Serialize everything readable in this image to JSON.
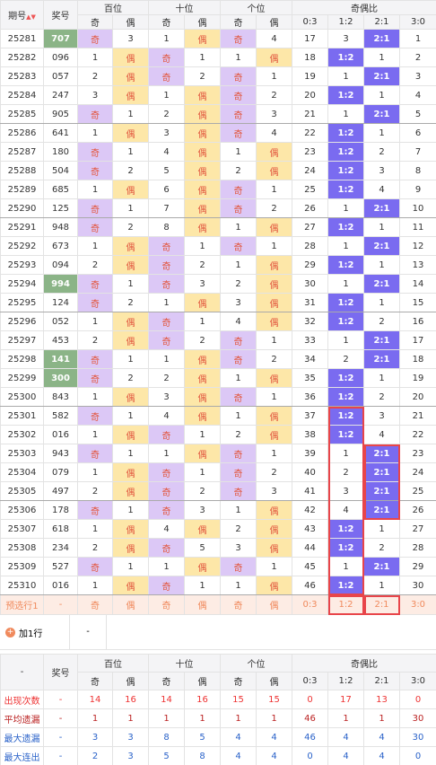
{
  "header": {
    "issue": "期号",
    "number": "奖号",
    "groups": [
      "百位",
      "十位",
      "个位",
      "奇偶比"
    ],
    "sub": [
      "奇",
      "偶",
      "奇",
      "偶",
      "奇",
      "偶",
      "0:3",
      "1:2",
      "2:1",
      "3:0"
    ]
  },
  "rows": [
    {
      "issue": "25281",
      "number": "707",
      "marked": true,
      "cells": [
        "奇",
        "3",
        "1",
        "偶",
        "奇",
        "4",
        "17",
        "3",
        "2:1",
        "1"
      ]
    },
    {
      "issue": "25282",
      "number": "096",
      "cells": [
        "1",
        "偶",
        "奇",
        "1",
        "1",
        "偶",
        "18",
        "1:2",
        "1",
        "2"
      ]
    },
    {
      "issue": "25283",
      "number": "057",
      "cells": [
        "2",
        "偶",
        "奇",
        "2",
        "奇",
        "1",
        "19",
        "1",
        "2:1",
        "3"
      ]
    },
    {
      "issue": "25284",
      "number": "247",
      "cells": [
        "3",
        "偶",
        "1",
        "偶",
        "奇",
        "2",
        "20",
        "1:2",
        "1",
        "4"
      ]
    },
    {
      "issue": "25285",
      "number": "905",
      "cells": [
        "奇",
        "1",
        "2",
        "偶",
        "奇",
        "3",
        "21",
        "1",
        "2:1",
        "5"
      ]
    },
    {
      "issue": "25286",
      "number": "641",
      "cells": [
        "1",
        "偶",
        "3",
        "偶",
        "奇",
        "4",
        "22",
        "1:2",
        "1",
        "6"
      ]
    },
    {
      "issue": "25287",
      "number": "180",
      "cells": [
        "奇",
        "1",
        "4",
        "偶",
        "1",
        "偶",
        "23",
        "1:2",
        "2",
        "7"
      ]
    },
    {
      "issue": "25288",
      "number": "504",
      "cells": [
        "奇",
        "2",
        "5",
        "偶",
        "2",
        "偶",
        "24",
        "1:2",
        "3",
        "8"
      ]
    },
    {
      "issue": "25289",
      "number": "685",
      "cells": [
        "1",
        "偶",
        "6",
        "偶",
        "奇",
        "1",
        "25",
        "1:2",
        "4",
        "9"
      ]
    },
    {
      "issue": "25290",
      "number": "125",
      "cells": [
        "奇",
        "1",
        "7",
        "偶",
        "奇",
        "2",
        "26",
        "1",
        "2:1",
        "10"
      ]
    },
    {
      "issue": "25291",
      "number": "948",
      "cells": [
        "奇",
        "2",
        "8",
        "偶",
        "1",
        "偶",
        "27",
        "1:2",
        "1",
        "11"
      ]
    },
    {
      "issue": "25292",
      "number": "673",
      "cells": [
        "1",
        "偶",
        "奇",
        "1",
        "奇",
        "1",
        "28",
        "1",
        "2:1",
        "12"
      ]
    },
    {
      "issue": "25293",
      "number": "094",
      "cells": [
        "2",
        "偶",
        "奇",
        "2",
        "1",
        "偶",
        "29",
        "1:2",
        "1",
        "13"
      ]
    },
    {
      "issue": "25294",
      "number": "994",
      "marked": true,
      "cells": [
        "奇",
        "1",
        "奇",
        "3",
        "2",
        "偶",
        "30",
        "1",
        "2:1",
        "14"
      ]
    },
    {
      "issue": "25295",
      "number": "124",
      "cells": [
        "奇",
        "2",
        "1",
        "偶",
        "3",
        "偶",
        "31",
        "1:2",
        "1",
        "15"
      ]
    },
    {
      "issue": "25296",
      "number": "052",
      "cells": [
        "1",
        "偶",
        "奇",
        "1",
        "4",
        "偶",
        "32",
        "1:2",
        "2",
        "16"
      ]
    },
    {
      "issue": "25297",
      "number": "453",
      "cells": [
        "2",
        "偶",
        "奇",
        "2",
        "奇",
        "1",
        "33",
        "1",
        "2:1",
        "17"
      ]
    },
    {
      "issue": "25298",
      "number": "141",
      "marked": true,
      "cells": [
        "奇",
        "1",
        "1",
        "偶",
        "奇",
        "2",
        "34",
        "2",
        "2:1",
        "18"
      ]
    },
    {
      "issue": "25299",
      "number": "300",
      "marked": true,
      "cells": [
        "奇",
        "2",
        "2",
        "偶",
        "1",
        "偶",
        "35",
        "1:2",
        "1",
        "19"
      ]
    },
    {
      "issue": "25300",
      "number": "843",
      "cells": [
        "1",
        "偶",
        "3",
        "偶",
        "奇",
        "1",
        "36",
        "1:2",
        "2",
        "20"
      ]
    },
    {
      "issue": "25301",
      "number": "582",
      "cells": [
        "奇",
        "1",
        "4",
        "偶",
        "1",
        "偶",
        "37",
        "1:2",
        "3",
        "21"
      ]
    },
    {
      "issue": "25302",
      "number": "016",
      "cells": [
        "1",
        "偶",
        "奇",
        "1",
        "2",
        "偶",
        "38",
        "1:2",
        "4",
        "22"
      ]
    },
    {
      "issue": "25303",
      "number": "943",
      "cells": [
        "奇",
        "1",
        "1",
        "偶",
        "奇",
        "1",
        "39",
        "1",
        "2:1",
        "23"
      ]
    },
    {
      "issue": "25304",
      "number": "079",
      "cells": [
        "1",
        "偶",
        "奇",
        "1",
        "奇",
        "2",
        "40",
        "2",
        "2:1",
        "24"
      ]
    },
    {
      "issue": "25305",
      "number": "497",
      "cells": [
        "2",
        "偶",
        "奇",
        "2",
        "奇",
        "3",
        "41",
        "3",
        "2:1",
        "25"
      ]
    },
    {
      "issue": "25306",
      "number": "178",
      "cells": [
        "奇",
        "1",
        "奇",
        "3",
        "1",
        "偶",
        "42",
        "4",
        "2:1",
        "26"
      ]
    },
    {
      "issue": "25307",
      "number": "618",
      "cells": [
        "1",
        "偶",
        "4",
        "偶",
        "2",
        "偶",
        "43",
        "1:2",
        "1",
        "27"
      ]
    },
    {
      "issue": "25308",
      "number": "234",
      "cells": [
        "2",
        "偶",
        "奇",
        "5",
        "3",
        "偶",
        "44",
        "1:2",
        "2",
        "28"
      ]
    },
    {
      "issue": "25309",
      "number": "527",
      "cells": [
        "奇",
        "1",
        "1",
        "偶",
        "奇",
        "1",
        "45",
        "1",
        "2:1",
        "29"
      ]
    },
    {
      "issue": "25310",
      "number": "016",
      "cells": [
        "1",
        "偶",
        "奇",
        "1",
        "1",
        "偶",
        "46",
        "1:2",
        "1",
        "30"
      ]
    }
  ],
  "preselect": {
    "label": "预选行1",
    "number": "-",
    "cells": [
      "奇",
      "偶",
      "奇",
      "偶",
      "奇",
      "偶",
      "0:3",
      "1:2",
      "2:1",
      "3:0"
    ]
  },
  "add_row": {
    "label": "加1行",
    "value": "-"
  },
  "stats": {
    "header": {
      "blank": "-",
      "number": "奖号",
      "groups": [
        "百位",
        "十位",
        "个位",
        "奇偶比"
      ],
      "sub": [
        "奇",
        "偶",
        "奇",
        "偶",
        "奇",
        "偶",
        "0:3",
        "1:2",
        "2:1",
        "3:0"
      ]
    },
    "rows": [
      {
        "label": "出现次数",
        "number": "-",
        "cells": [
          "14",
          "16",
          "14",
          "16",
          "15",
          "15",
          "0",
          "17",
          "13",
          "0"
        ]
      },
      {
        "label": "平均遗漏",
        "number": "-",
        "cells": [
          "1",
          "1",
          "1",
          "1",
          "1",
          "1",
          "46",
          "1",
          "1",
          "30"
        ]
      },
      {
        "label": "最大遗漏",
        "number": "-",
        "cells": [
          "3",
          "3",
          "8",
          "5",
          "4",
          "4",
          "46",
          "4",
          "4",
          "30"
        ]
      },
      {
        "label": "最大连出",
        "number": "-",
        "cells": [
          "2",
          "3",
          "5",
          "8",
          "4",
          "4",
          "0",
          "4",
          "4",
          "0"
        ]
      }
    ]
  }
}
